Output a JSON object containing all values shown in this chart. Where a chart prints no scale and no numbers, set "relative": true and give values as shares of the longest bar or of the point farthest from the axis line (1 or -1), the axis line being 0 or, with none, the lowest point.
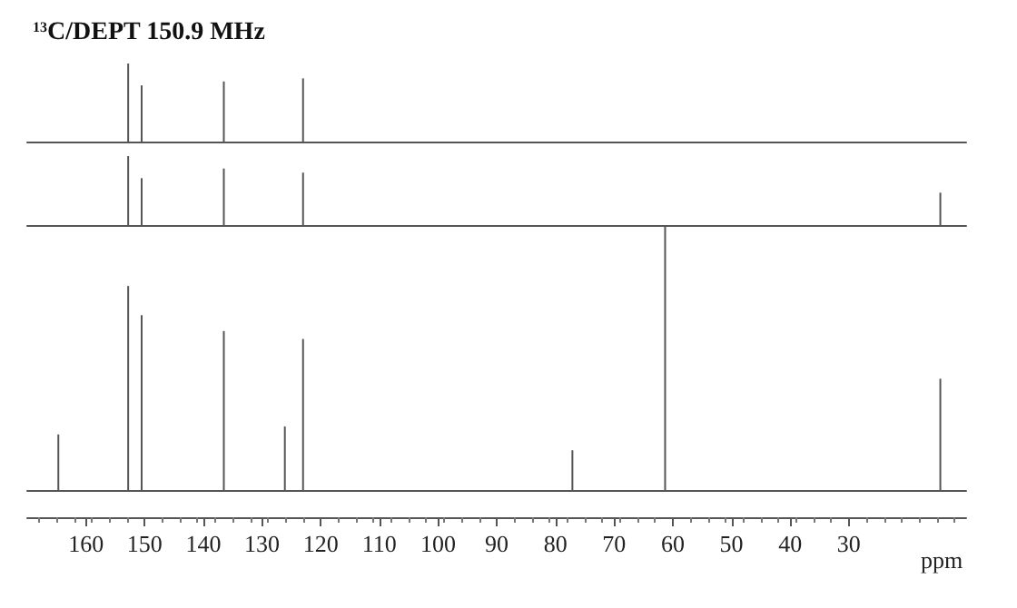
{
  "chart_data": [
    {
      "type": "bar",
      "title": "$^{13}$C/DEPT 150.9 MHz",
      "relative": true,
      "x": [
        152.8,
        150.5,
        136.5,
        123.0
      ],
      "values": [
        1,
        0.72,
        0.77,
        0.81
      ],
      "color": "#555555",
      "xlim": [
        170,
        10
      ],
      "tick_labels": false
    },
    {
      "type": "bar",
      "relative": true,
      "x": [
        152.8,
        150.5,
        136.5,
        123.0,
        14.4
      ],
      "values": [
        1,
        0.68,
        0.82,
        0.76,
        0.47
      ],
      "color": "#555555",
      "xlim": [
        170,
        10
      ],
      "tick_labels": false
    },
    {
      "type": "bar",
      "relative": true,
      "xlabel": "ppm",
      "x": [
        164.7,
        152.8,
        150.5,
        136.5,
        126.1,
        123.0,
        77.1,
        61.3,
        14.4
      ],
      "values": [
        0.21,
        0.77,
        0.66,
        0.6,
        0.24,
        0.57,
        0.15,
        1,
        0.42
      ],
      "color": "#555555",
      "xlim": [
        170,
        10
      ],
      "xticks": [
        160,
        150,
        140,
        130,
        120,
        110,
        100,
        90,
        80,
        70,
        60,
        50,
        40,
        30
      ],
      "tick_labels": "x"
    }
  ]
}
